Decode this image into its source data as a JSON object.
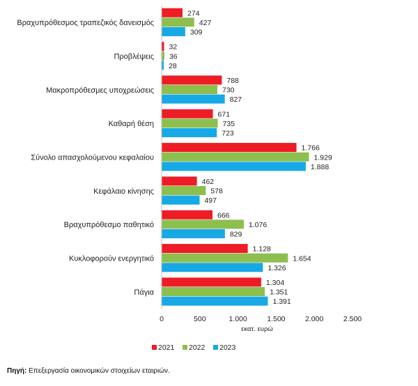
{
  "chart_data": {
    "type": "bar",
    "orientation": "horizontal",
    "categories": [
      "Βραχυπρόθεσμος τραπεζικός δανεισμός",
      "Προβλέψεις",
      "Μακροπρόθεσμες υποχρεώσεις",
      "Καθαρή θέση",
      "Σύνολο απασχολούμενου κεφαλαίου",
      "Κεφάλαιο κίνησης",
      "Βραχυπρόθεσμο παθητικό",
      "Κυκλοφορούν ενεργητικό",
      "Πάγια"
    ],
    "series": [
      {
        "name": "2021",
        "color": "#ee1c25",
        "values": [
          274,
          32,
          788,
          671,
          1766,
          462,
          666,
          1128,
          1304
        ],
        "labels": [
          "274",
          "32",
          "788",
          "671",
          "1.766",
          "462",
          "666",
          "1.128",
          "1.304"
        ]
      },
      {
        "name": "2022",
        "color": "#8dbf4e",
        "values": [
          427,
          36,
          730,
          735,
          1929,
          578,
          1076,
          1654,
          1351
        ],
        "labels": [
          "427",
          "36",
          "730",
          "735",
          "1.929",
          "578",
          "1.076",
          "1.654",
          "1.351"
        ]
      },
      {
        "name": "2023",
        "color": "#17a9e6",
        "values": [
          309,
          28,
          827,
          723,
          1888,
          497,
          829,
          1326,
          1391
        ],
        "labels": [
          "309",
          "28",
          "827",
          "723",
          "1.888",
          "497",
          "829",
          "1.326",
          "1.391"
        ]
      }
    ],
    "xlim": [
      0,
      2500
    ],
    "xticks": [
      0,
      500,
      1000,
      1500,
      2000,
      2500
    ],
    "xtick_labels": [
      "0",
      "500",
      "1.000",
      "1.500",
      "2.000",
      "2.500"
    ],
    "xlabel": "εκατ. ευρώ",
    "legend_position": "bottom",
    "grid": false
  },
  "source": {
    "label": "Πηγή:",
    "text": " Επεξεργασία οικονομικών στοιχείων εταιριών."
  }
}
